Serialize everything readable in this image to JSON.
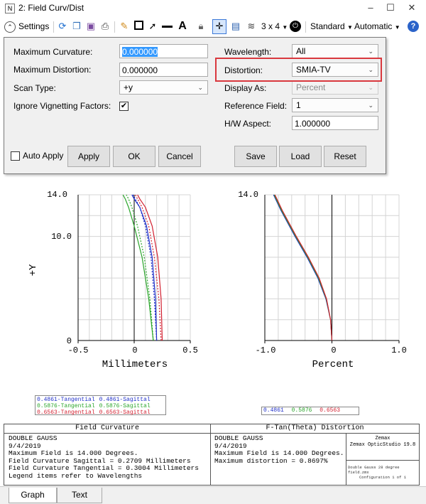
{
  "window": {
    "title": "2: Field Curv/Dist"
  },
  "toolbar": {
    "settings_label": "Settings",
    "layout_label": "3 x 4",
    "standard_label": "Standard",
    "automatic_label": "Automatic"
  },
  "settings": {
    "max_curvature_label": "Maximum Curvature:",
    "max_curvature_value": "0.000000",
    "max_distortion_label": "Maximum Distortion:",
    "max_distortion_value": "0.000000",
    "scan_type_label": "Scan Type:",
    "scan_type_value": "+y",
    "ignore_vig_label": "Ignore Vignetting Factors:",
    "ignore_vig_checked": true,
    "wavelength_label": "Wavelength:",
    "wavelength_value": "All",
    "distortion_label": "Distortion:",
    "distortion_value": "SMIA-TV",
    "display_as_label": "Display As:",
    "display_as_value": "Percent",
    "reference_field_label": "Reference Field:",
    "reference_field_value": "1",
    "hw_aspect_label": "H/W Aspect:",
    "hw_aspect_value": "1.000000",
    "auto_apply_label": "Auto Apply",
    "auto_apply_checked": false,
    "apply_label": "Apply",
    "ok_label": "OK",
    "cancel_label": "Cancel",
    "save_label": "Save",
    "load_label": "Load",
    "reset_label": "Reset"
  },
  "colors": {
    "blue": "#1f2fc8",
    "green": "#2aa52a",
    "red": "#d21f2f",
    "highlight": "#d9383e"
  },
  "chart_data": [
    {
      "type": "line",
      "title": "",
      "xlabel": "Millimeters",
      "ylabel": "+Y",
      "xlim": [
        -0.5,
        0.5
      ],
      "ylim": [
        0,
        14.0
      ],
      "x_ticks": [
        "-0.5",
        "0",
        "0.5"
      ],
      "y_ticks": [
        "14.0",
        "10.0",
        "0"
      ],
      "grid": true,
      "series": [
        {
          "name": "0.4861-Tangential",
          "color": "#1f2fc8",
          "dash": "solid",
          "x": [
            0.2,
            0.19,
            0.16,
            0.11,
            0.05,
            0.0,
            -0.02
          ],
          "y": [
            0,
            4,
            8,
            11,
            12.8,
            13.6,
            14.0
          ]
        },
        {
          "name": "0.4861-Sagittal",
          "color": "#1f2fc8",
          "dash": "dotted",
          "x": [
            0.2,
            0.18,
            0.15,
            0.1,
            0.05,
            0.01,
            -0.01
          ],
          "y": [
            0,
            4,
            8,
            11,
            12.8,
            13.6,
            14.0
          ]
        },
        {
          "name": "0.5876-Tangential",
          "color": "#2aa52a",
          "dash": "solid",
          "x": [
            0.17,
            0.13,
            0.07,
            0.0,
            -0.05,
            -0.08,
            -0.1
          ],
          "y": [
            0,
            4,
            8,
            11,
            12.8,
            13.6,
            14.0
          ]
        },
        {
          "name": "0.5876-Sagittal",
          "color": "#2aa52a",
          "dash": "dotted",
          "x": [
            0.17,
            0.14,
            0.09,
            0.03,
            -0.02,
            -0.05,
            -0.07
          ],
          "y": [
            0,
            4,
            8,
            11,
            12.8,
            13.6,
            14.0
          ]
        },
        {
          "name": "0.6563-Tangential",
          "color": "#d21f2f",
          "dash": "solid",
          "x": [
            0.25,
            0.24,
            0.21,
            0.16,
            0.1,
            0.05,
            0.03
          ],
          "y": [
            0,
            4,
            8,
            11,
            12.8,
            13.6,
            14.0
          ]
        },
        {
          "name": "0.6563-Sagittal",
          "color": "#d21f2f",
          "dash": "dotted",
          "x": [
            0.24,
            0.22,
            0.18,
            0.13,
            0.07,
            0.03,
            0.01
          ],
          "y": [
            0,
            4,
            8,
            11,
            12.8,
            13.6,
            14.0
          ]
        }
      ]
    },
    {
      "type": "line",
      "title": "",
      "xlabel": "Percent",
      "ylabel": "",
      "xlim": [
        -1.0,
        1.0
      ],
      "ylim": [
        0,
        14.0
      ],
      "x_ticks": [
        "-1.0",
        "0",
        "1.0"
      ],
      "y_ticks": [
        "14.0"
      ],
      "grid": true,
      "series": [
        {
          "name": "0.4861",
          "color": "#1f2fc8",
          "x": [
            0,
            -0.02,
            -0.09,
            -0.21,
            -0.37,
            -0.55,
            -0.76,
            -0.87
          ],
          "y": [
            0,
            2,
            4,
            6,
            8,
            10,
            12.5,
            14.0
          ]
        },
        {
          "name": "0.5876",
          "color": "#2aa52a",
          "x": [
            0,
            -0.02,
            -0.085,
            -0.2,
            -0.36,
            -0.54,
            -0.75,
            -0.86
          ],
          "y": [
            0,
            2,
            4,
            6,
            8,
            10,
            12.5,
            14.0
          ]
        },
        {
          "name": "0.6563",
          "color": "#d21f2f",
          "x": [
            0,
            -0.02,
            -0.08,
            -0.19,
            -0.35,
            -0.53,
            -0.74,
            -0.85
          ],
          "y": [
            0,
            2,
            4,
            6,
            8,
            10,
            12.5,
            14.0
          ]
        }
      ]
    }
  ],
  "legend": {
    "fc_items": [
      "0.4861-Tangential",
      "0.4861-Sagittal",
      "0.5876-Tangential",
      "0.5876-Sagittal",
      "0.6563-Tangential",
      "0.6563-Sagittal"
    ],
    "dist_items": [
      "0.4861",
      "0.5876",
      "0.6563"
    ]
  },
  "info": {
    "fc_title": "Field Curvature",
    "dist_title": "F-Tan(Theta) Distortion",
    "left_lines": [
      "DOUBLE GAUSS",
      "9/4/2019",
      "Maximum Field is 14.000 Degrees.",
      "Field Curvature Sagittal = 0.2709 Millimeters",
      "Field Curvature Tangential = 0.3004 Millimeters",
      "Legend items refer to Wavelengths"
    ],
    "right_lines": [
      "DOUBLE GAUSS",
      "9/4/2019",
      "Maximum Field is 14.000 Degrees.",
      "Maximum distortion = 0.8697%"
    ],
    "vendor": "Zemax",
    "product": "Zemax OpticStudio 19.8",
    "file_line1": "Double Gauss 28 degree field.zmx",
    "file_line2": "Configuration 1 of 1"
  },
  "tabs": {
    "graph_label": "Graph",
    "text_label": "Text"
  }
}
